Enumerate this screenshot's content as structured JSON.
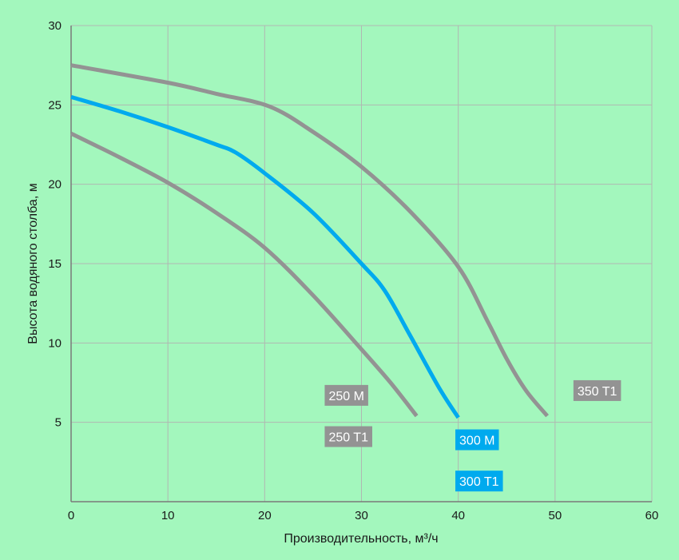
{
  "chart_data": {
    "type": "line",
    "xlabel": "Производительность, м³/ч",
    "ylabel": "Высота водяного столба, м",
    "xlim": [
      0,
      60
    ],
    "ylim": [
      0,
      30
    ],
    "x_ticks": [
      0,
      10,
      20,
      30,
      40,
      50,
      60
    ],
    "y_ticks": [
      5,
      10,
      15,
      20,
      25,
      30
    ],
    "grid": true,
    "colors": {
      "background": "#a3f7bd",
      "grid": "#b0b8b2",
      "gray_series": "#939393",
      "blue_series": "#00aaee",
      "axis": "#7a7a7a"
    },
    "series": [
      {
        "name": "250 M / 250 T1",
        "color": "#939393",
        "points": [
          [
            0,
            23.2
          ],
          [
            5,
            21.7
          ],
          [
            10,
            20.1
          ],
          [
            15,
            18.2
          ],
          [
            20,
            16.0
          ],
          [
            25,
            13.0
          ],
          [
            30,
            9.6
          ],
          [
            33,
            7.5
          ],
          [
            35.7,
            5.4
          ]
        ]
      },
      {
        "name": "300 M / 300 T1",
        "color": "#00aaee",
        "points": [
          [
            0,
            25.5
          ],
          [
            5,
            24.6
          ],
          [
            10,
            23.6
          ],
          [
            15,
            22.5
          ],
          [
            17,
            22.0
          ],
          [
            20,
            20.7
          ],
          [
            25,
            18.2
          ],
          [
            30,
            15.0
          ],
          [
            32.4,
            13.3
          ],
          [
            35,
            10.5
          ],
          [
            38,
            7.2
          ],
          [
            40,
            5.3
          ]
        ]
      },
      {
        "name": "350 T1",
        "color": "#939393",
        "points": [
          [
            0,
            27.5
          ],
          [
            10,
            26.4
          ],
          [
            15,
            25.7
          ],
          [
            20.5,
            24.9
          ],
          [
            25,
            23.3
          ],
          [
            30,
            21.1
          ],
          [
            35,
            18.3
          ],
          [
            40,
            14.8
          ],
          [
            43,
            11.4
          ],
          [
            45,
            9.0
          ],
          [
            47,
            7.0
          ],
          [
            49.2,
            5.4
          ]
        ]
      }
    ],
    "labels": [
      {
        "text": "250 M",
        "x": 26.2,
        "y": 6.7,
        "color": "#939393"
      },
      {
        "text": "250 T1",
        "x": 26.2,
        "y": 4.1,
        "color": "#939393"
      },
      {
        "text": "300 M",
        "x": 39.7,
        "y": 3.9,
        "color": "#00aaee"
      },
      {
        "text": "300 T1",
        "x": 39.7,
        "y": 1.3,
        "color": "#00aaee"
      },
      {
        "text": "350 T1",
        "x": 51.9,
        "y": 7.0,
        "color": "#939393"
      }
    ]
  }
}
